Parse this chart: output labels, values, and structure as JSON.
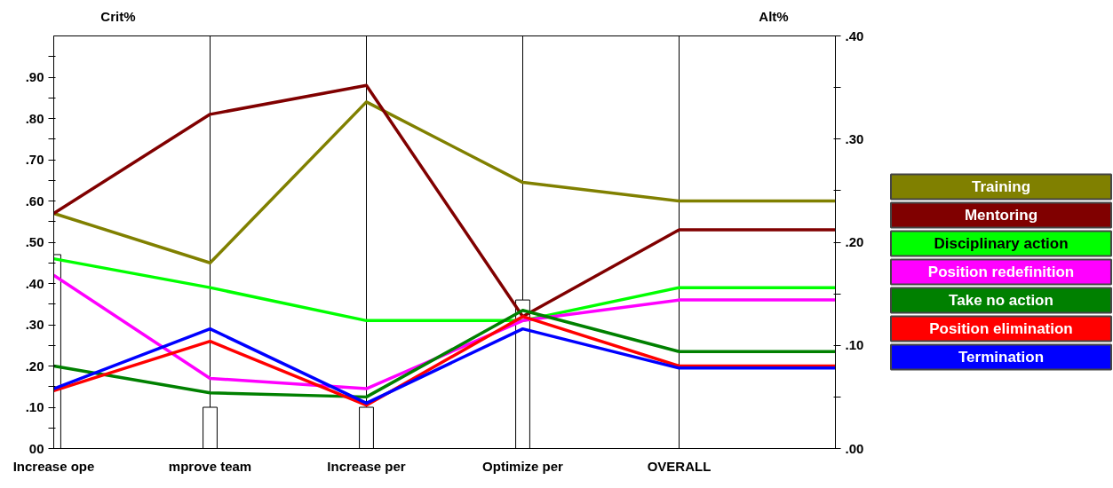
{
  "chart_data": {
    "type": "line",
    "ylabel": "Crit%",
    "y2label": "Alt%",
    "categories": [
      "Increase ope",
      "mprove team",
      "Increase per",
      "Optimize per",
      "OVERALL",
      null
    ],
    "ylim": [
      0,
      1
    ],
    "yticks": [
      {
        "value": 0,
        "label": "00"
      },
      {
        "value": 0.05,
        "label": null
      },
      {
        "value": 0.1,
        "label": ".10"
      },
      {
        "value": 0.15,
        "label": null
      },
      {
        "value": 0.2,
        "label": ".20"
      },
      {
        "value": 0.25,
        "label": null
      },
      {
        "value": 0.3,
        "label": ".30"
      },
      {
        "value": 0.35,
        "label": null
      },
      {
        "value": 0.4,
        "label": ".40"
      },
      {
        "value": 0.45,
        "label": null
      },
      {
        "value": 0.5,
        "label": ".50"
      },
      {
        "value": 0.55,
        "label": null
      },
      {
        "value": 0.6,
        "label": ".60"
      },
      {
        "value": 0.65,
        "label": null
      },
      {
        "value": 0.7,
        "label": ".70"
      },
      {
        "value": 0.75,
        "label": null
      },
      {
        "value": 0.8,
        "label": ".80"
      },
      {
        "value": 0.85,
        "label": null
      },
      {
        "value": 0.9,
        "label": ".90"
      },
      {
        "value": 0.95,
        "label": null
      }
    ],
    "y2lim": [
      0,
      0.4
    ],
    "y2ticks": [
      {
        "value": 0,
        "label": ".00"
      },
      {
        "value": 0.05,
        "label": null
      },
      {
        "value": 0.1,
        "label": ".10"
      },
      {
        "value": 0.15,
        "label": null
      },
      {
        "value": 0.2,
        "label": ".20"
      },
      {
        "value": 0.25,
        "label": null
      },
      {
        "value": 0.3,
        "label": ".30"
      },
      {
        "value": 0.35,
        "label": null
      },
      {
        "value": 0.4,
        "label": ".40"
      }
    ],
    "grid": "x",
    "legend": "right",
    "marker": "none",
    "line_style": "solid",
    "series": [
      {
        "type": "bar",
        "color": "#ffffff",
        "values": [
          0.47,
          0.1,
          0.1,
          0.36,
          null,
          null
        ]
      },
      {
        "name": "Training",
        "color": "#808000",
        "axis": "y2",
        "values": [
          0.228,
          0.18,
          0.336,
          0.258,
          0.24,
          0.24
        ]
      },
      {
        "name": "Mentoring",
        "color": "#800000",
        "axis": "y2",
        "values": [
          0.228,
          0.324,
          0.352,
          0.128,
          0.212,
          0.212
        ]
      },
      {
        "name": "Disciplinary action",
        "color": "#00ff00",
        "axis": "y2",
        "values": [
          0.184,
          0.156,
          0.124,
          0.124,
          0.156,
          0.156
        ]
      },
      {
        "name": "Position redefinition",
        "color": "#ff00ff",
        "axis": "y2",
        "values": [
          0.168,
          0.068,
          0.058,
          0.124,
          0.144,
          0.144
        ]
      },
      {
        "name": "Take no action",
        "color": "#008000",
        "axis": "y2",
        "values": [
          0.08,
          0.054,
          0.05,
          0.134,
          0.094,
          0.094
        ]
      },
      {
        "name": "Position elimination",
        "color": "#ff0000",
        "axis": "y2",
        "values": [
          0.056,
          0.104,
          0.042,
          0.128,
          0.08,
          0.08
        ]
      },
      {
        "name": "Termination",
        "color": "#0000ff",
        "axis": "y2",
        "values": [
          0.058,
          0.116,
          0.044,
          0.116,
          0.078,
          0.078
        ]
      }
    ]
  }
}
